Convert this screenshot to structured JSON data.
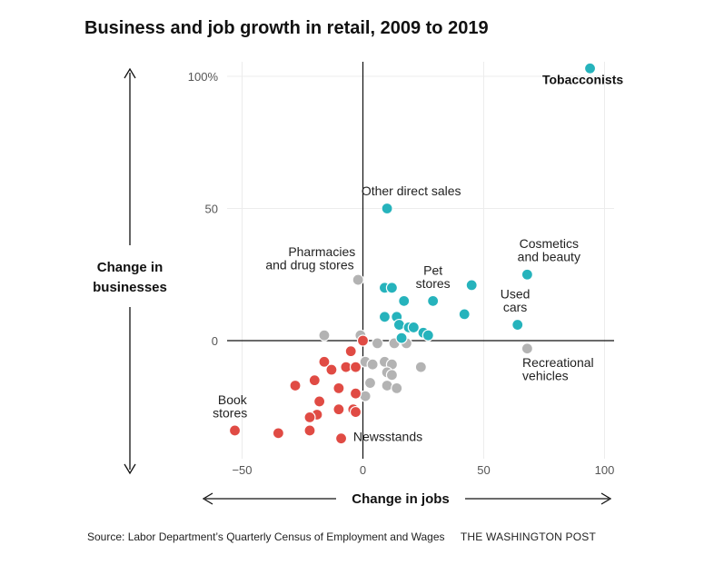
{
  "chart_data": {
    "type": "scatter",
    "title": "Business and job growth in retail, 2009 to 2019",
    "xlabel": "Change in jobs",
    "ylabel": "Change in businesses",
    "xlim": [
      -60,
      105
    ],
    "ylim": [
      -50,
      105
    ],
    "x_ticks": [
      "−50",
      "0",
      "50",
      "100"
    ],
    "x_tick_values": [
      -50,
      0,
      50,
      100
    ],
    "y_ticks": [
      "100%",
      "50",
      "0"
    ],
    "y_tick_values": [
      100,
      50,
      0
    ],
    "grid": true,
    "colors": {
      "growth": "#26b3bc",
      "decline": "#e04b44",
      "mixed": "#b3b3b3"
    },
    "points": [
      {
        "x": 94,
        "y": 103,
        "group": "growth"
      },
      {
        "x": 10,
        "y": 50,
        "group": "growth"
      },
      {
        "x": 68,
        "y": 25,
        "group": "growth"
      },
      {
        "x": 64,
        "y": 6,
        "group": "growth"
      },
      {
        "x": 45,
        "y": 21,
        "group": "growth"
      },
      {
        "x": 42,
        "y": 10,
        "group": "growth"
      },
      {
        "x": 29,
        "y": 15,
        "group": "growth"
      },
      {
        "x": 9,
        "y": 20,
        "group": "growth"
      },
      {
        "x": 12,
        "y": 20,
        "group": "growth"
      },
      {
        "x": 17,
        "y": 15,
        "group": "growth"
      },
      {
        "x": 14,
        "y": 9,
        "group": "growth"
      },
      {
        "x": 9,
        "y": 9,
        "group": "growth"
      },
      {
        "x": 15,
        "y": 6,
        "group": "growth"
      },
      {
        "x": 19,
        "y": 5,
        "group": "growth"
      },
      {
        "x": 21,
        "y": 5,
        "group": "growth"
      },
      {
        "x": 25,
        "y": 3,
        "group": "growth"
      },
      {
        "x": 27,
        "y": 2,
        "group": "growth"
      },
      {
        "x": 16,
        "y": 1,
        "group": "growth"
      },
      {
        "x": -2,
        "y": 23,
        "group": "mixed"
      },
      {
        "x": 68,
        "y": -3,
        "group": "mixed"
      },
      {
        "x": -16,
        "y": 2,
        "group": "mixed"
      },
      {
        "x": -1,
        "y": 2,
        "group": "mixed"
      },
      {
        "x": 6,
        "y": -1,
        "group": "mixed"
      },
      {
        "x": 13,
        "y": -1,
        "group": "mixed"
      },
      {
        "x": 18,
        "y": -1,
        "group": "mixed"
      },
      {
        "x": 1,
        "y": -8,
        "group": "mixed"
      },
      {
        "x": 4,
        "y": -9,
        "group": "mixed"
      },
      {
        "x": 9,
        "y": -8,
        "group": "mixed"
      },
      {
        "x": 12,
        "y": -9,
        "group": "mixed"
      },
      {
        "x": 24,
        "y": -10,
        "group": "mixed"
      },
      {
        "x": 10,
        "y": -12,
        "group": "mixed"
      },
      {
        "x": 12,
        "y": -13,
        "group": "mixed"
      },
      {
        "x": 3,
        "y": -16,
        "group": "mixed"
      },
      {
        "x": 10,
        "y": -17,
        "group": "mixed"
      },
      {
        "x": 14,
        "y": -18,
        "group": "mixed"
      },
      {
        "x": 1,
        "y": -21,
        "group": "mixed"
      },
      {
        "x": -5,
        "y": -4,
        "group": "decline"
      },
      {
        "x": 0,
        "y": 0,
        "group": "decline"
      },
      {
        "x": -16,
        "y": -8,
        "group": "decline"
      },
      {
        "x": -13,
        "y": -11,
        "group": "decline"
      },
      {
        "x": -7,
        "y": -10,
        "group": "decline"
      },
      {
        "x": -3,
        "y": -10,
        "group": "decline"
      },
      {
        "x": -20,
        "y": -15,
        "group": "decline"
      },
      {
        "x": -28,
        "y": -17,
        "group": "decline"
      },
      {
        "x": -10,
        "y": -18,
        "group": "decline"
      },
      {
        "x": -3,
        "y": -20,
        "group": "decline"
      },
      {
        "x": -18,
        "y": -23,
        "group": "decline"
      },
      {
        "x": -10,
        "y": -26,
        "group": "decline"
      },
      {
        "x": -4,
        "y": -26,
        "group": "decline"
      },
      {
        "x": -3,
        "y": -27,
        "group": "decline"
      },
      {
        "x": -19,
        "y": -28,
        "group": "decline"
      },
      {
        "x": -22,
        "y": -29,
        "group": "decline"
      },
      {
        "x": -53,
        "y": -34,
        "group": "decline"
      },
      {
        "x": -35,
        "y": -35,
        "group": "decline"
      },
      {
        "x": -22,
        "y": -34,
        "group": "decline"
      },
      {
        "x": -9,
        "y": -37,
        "group": "decline"
      }
    ],
    "annotations": [
      {
        "text": "Tobacconists",
        "x": 91,
        "y": 97,
        "anchor": "middle",
        "bold": true
      },
      {
        "text": "Other direct sales",
        "x": 20,
        "y": 55,
        "anchor": "middle"
      },
      {
        "text": "Cosmetics",
        "x": 77,
        "y": 35,
        "anchor": "middle"
      },
      {
        "text": "and beauty",
        "x": 77,
        "y": 30,
        "anchor": "middle"
      },
      {
        "text": "Pharmacies",
        "x": -17,
        "y": 32,
        "anchor": "middle"
      },
      {
        "text": "and drug stores",
        "x": -22,
        "y": 27,
        "anchor": "middle"
      },
      {
        "text": "Pet",
        "x": 29,
        "y": 25,
        "anchor": "middle"
      },
      {
        "text": "stores",
        "x": 29,
        "y": 20,
        "anchor": "middle"
      },
      {
        "text": "Used",
        "x": 63,
        "y": 16,
        "anchor": "middle"
      },
      {
        "text": "cars",
        "x": 63,
        "y": 11,
        "anchor": "middle"
      },
      {
        "text": "Recreational",
        "x": 66,
        "y": -10,
        "anchor": "start"
      },
      {
        "text": "vehicles",
        "x": 66,
        "y": -15,
        "anchor": "start"
      },
      {
        "text": "Book",
        "x": -54,
        "y": -24,
        "anchor": "middle"
      },
      {
        "text": "stores",
        "x": -55,
        "y": -29,
        "anchor": "middle"
      },
      {
        "text": "Newsstands",
        "x": -4,
        "y": -38,
        "anchor": "start"
      }
    ]
  },
  "footer": {
    "source": "Source: Labor Department’s Quarterly Census of Employment and Wages",
    "credit": "THE WASHINGTON POST"
  }
}
